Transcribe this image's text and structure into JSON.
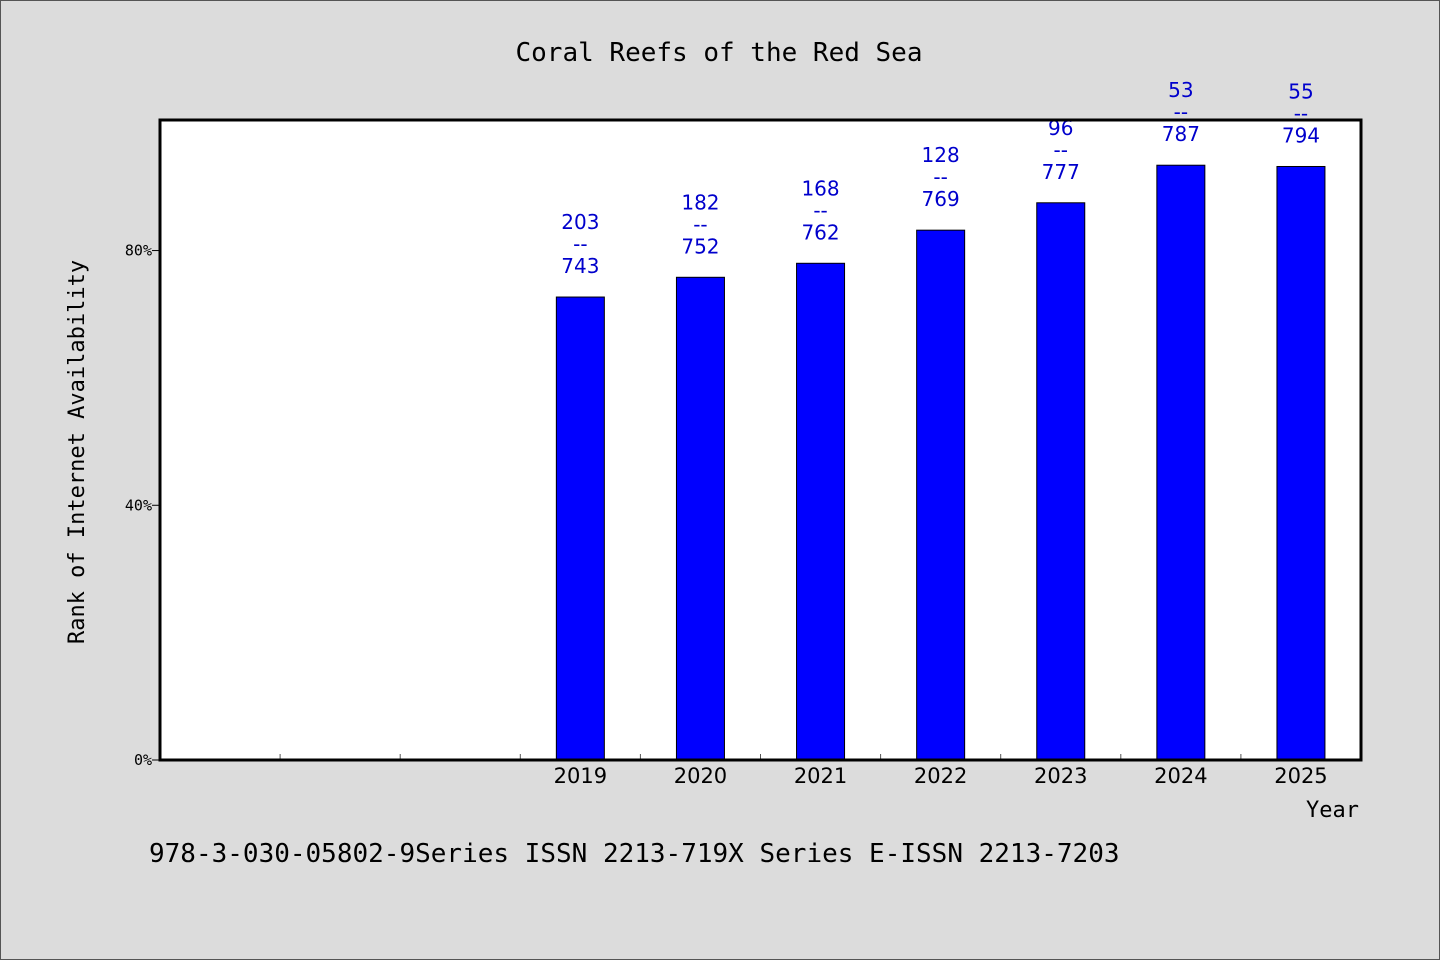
{
  "chart_data": {
    "type": "bar",
    "title": "Coral Reefs of the Red Sea",
    "xlabel": "Year",
    "ylabel": "Rank of Internet Availability",
    "categories": [
      "",
      "",
      "",
      "2019",
      "2020",
      "2021",
      "2022",
      "2023",
      "2024",
      "2025"
    ],
    "values": [
      null,
      null,
      null,
      72.7,
      75.8,
      78.0,
      83.2,
      87.5,
      93.4,
      93.2
    ],
    "data_labels": [
      null,
      null,
      null,
      [
        "203",
        "--",
        "743"
      ],
      [
        "182",
        "--",
        "752"
      ],
      [
        "168",
        "--",
        "762"
      ],
      [
        "128",
        "--",
        "769"
      ],
      [
        "96",
        "--",
        "777"
      ],
      [
        "53",
        "--",
        "787"
      ],
      [
        "55",
        "--",
        "794"
      ]
    ],
    "y_ticks": [
      {
        "value": 0,
        "label": "0%"
      },
      {
        "value": 40,
        "label": "40%"
      },
      {
        "value": 80,
        "label": "80%"
      }
    ],
    "ylim": [
      0,
      100.5
    ],
    "grid": false,
    "bar_color": "#0000ff",
    "label_color": "#0000cc"
  },
  "footer": {
    "text": "978-3-030-05802-9Series ISSN 2213-719X Series E-ISSN 2213-7203"
  }
}
